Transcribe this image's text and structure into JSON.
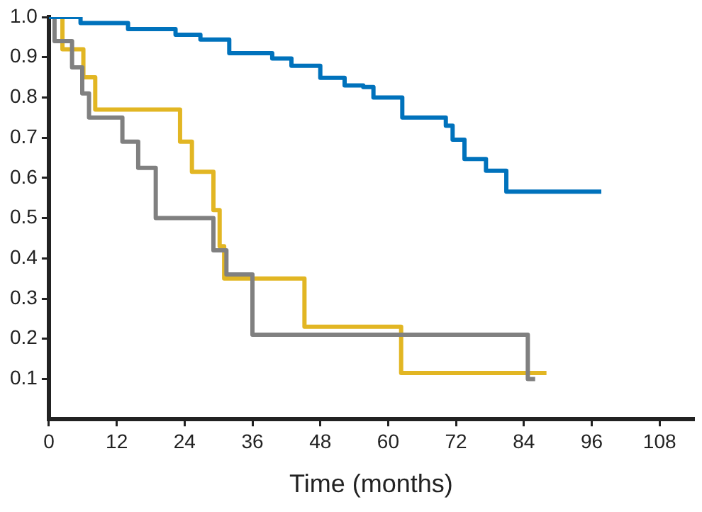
{
  "chart_data": {
    "type": "step",
    "xlabel": "Time (months)",
    "xlim": [
      0,
      114
    ],
    "xticks": [
      0,
      12,
      24,
      36,
      48,
      60,
      72,
      84,
      96,
      108
    ],
    "ylim": [
      0,
      1
    ],
    "yticks": [
      0.1,
      0.2,
      0.3,
      0.4,
      0.5,
      0.6,
      0.7,
      0.8,
      0.9,
      {
        "value": 1,
        "label": "1.0"
      }
    ],
    "grid": false,
    "legend": false,
    "marker": "none",
    "line_style": "solid",
    "series": [
      {
        "color": "#0072bc",
        "x": [
          0,
          5.6,
          14,
          22.4,
          26.8,
          31.9,
          39.5,
          42.9,
          48,
          52.3,
          55.6,
          57.4,
          60.7,
          62.5,
          70.2,
          71.4,
          73.5,
          77.3,
          80.9,
          97.7
        ],
        "values": [
          1,
          0.985,
          0.97,
          0.956,
          0.944,
          0.91,
          0.897,
          0.879,
          0.849,
          0.83,
          0.826,
          0.8,
          0.8,
          0.75,
          0.73,
          0.695,
          0.647,
          0.618,
          0.566,
          0.566
        ]
      },
      {
        "color": "#808080",
        "x": [
          0,
          1,
          4.1,
          5.9,
          7.1,
          13,
          15.8,
          18.9,
          29.1,
          31.4,
          36,
          84.7,
          86
        ],
        "values": [
          1,
          0.94,
          0.875,
          0.81,
          0.75,
          0.69,
          0.625,
          0.5,
          0.42,
          0.36,
          0.21,
          0.1,
          0.1
        ]
      },
      {
        "color": "#e2b623",
        "x": [
          1.5,
          2.4,
          6.1,
          8.2,
          23.2,
          25.3,
          29.1,
          30.2,
          31,
          45.2,
          62.3,
          88
        ],
        "values": [
          1,
          0.92,
          0.85,
          0.77,
          0.69,
          0.615,
          0.52,
          0.43,
          0.35,
          0.23,
          0.115,
          0.115
        ]
      }
    ]
  }
}
